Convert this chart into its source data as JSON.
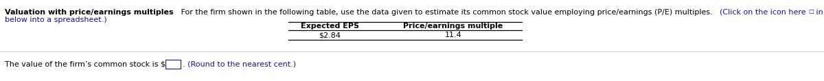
{
  "title_bold": "Valuation with price/earnings multiples",
  "title_normal": "   For the firm shown in the following table, use the data given to estimate its common stock value employing price/earnings (P/E) multiples.   ",
  "title_blue1": "(Click on the icon here ",
  "title_icon": "□",
  "title_blue2": " in order to copy the contents of the data table",
  "title_line2_blue": "below into a spreadsheet.)",
  "col1_header": "Expected EPS",
  "col2_header": "Price/earnings multiple",
  "col1_value": "$2.84",
  "col2_value": "11.4",
  "bottom_normal": "The value of the firm’s common stock is $",
  "bottom_box": " ",
  "bottom_period": ". ",
  "bottom_blue": "(Round to the nearest cent.)",
  "bg_color": "#ffffff",
  "black": "#000000",
  "blue": "#1a0dab",
  "gray_line": "#cccccc",
  "fs": 8.0,
  "fig_width": 12.0,
  "fig_height": 1.18,
  "dpi": 100
}
